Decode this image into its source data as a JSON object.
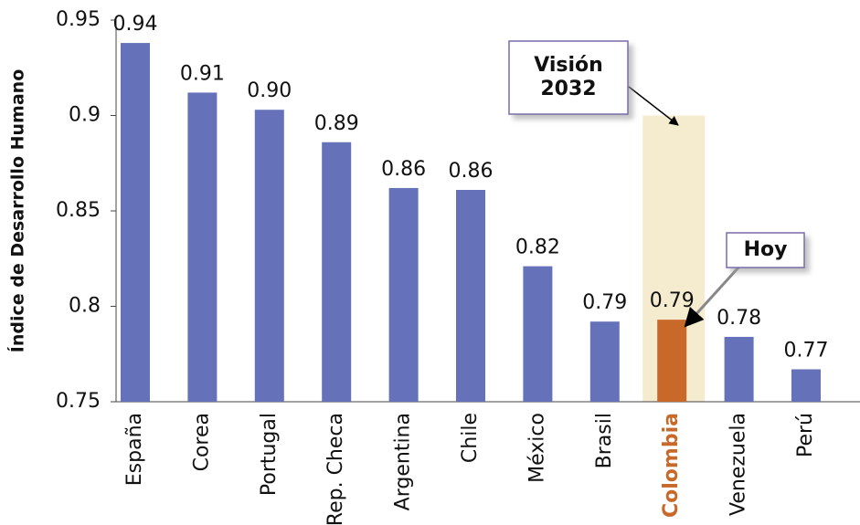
{
  "chart_data": {
    "type": "bar",
    "y_label": "Índice de Desarrollo Humano",
    "categories": [
      "España",
      "Corea",
      "Portugal",
      "Rep. Checa",
      "Argentina",
      "Chile",
      "México",
      "Brasil",
      "Colombia",
      "Venezuela",
      "Perú"
    ],
    "values": [
      0.938,
      0.912,
      0.903,
      0.886,
      0.862,
      0.861,
      0.821,
      0.792,
      0.793,
      0.784,
      0.767
    ],
    "value_labels": [
      "0.94",
      "0.91",
      "0.90",
      "0.89",
      "0.86",
      "0.86",
      "0.82",
      "0.79",
      "0.79",
      "0.78",
      "0.77"
    ],
    "color": "#6571b8",
    "highlight_index": 8,
    "highlight_color": "#c8692a",
    "target": {
      "value": 0.9,
      "color": "#f5ebcf"
    },
    "annotations": [
      [
        "Visión",
        "2032"
      ],
      [
        "Hoy"
      ]
    ],
    "ylim": [
      0.75,
      0.95
    ],
    "yticks": [
      0.75,
      0.8,
      0.85,
      0.9,
      0.95
    ],
    "grid": false
  }
}
